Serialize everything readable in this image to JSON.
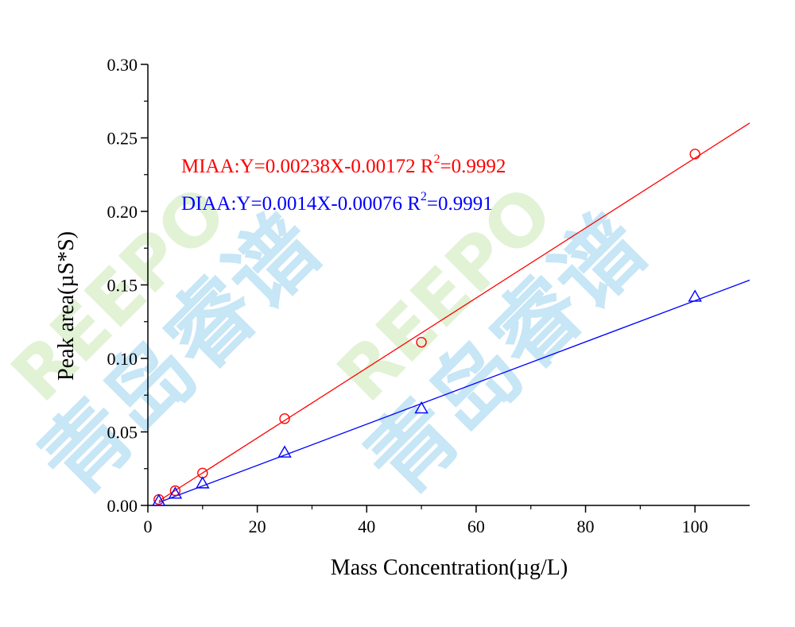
{
  "chart_data": {
    "type": "scatter",
    "xlabel": "Mass Concentration(µg/L)",
    "ylabel": "Peak area(µS*S)",
    "xlim": [
      0,
      110
    ],
    "ylim": [
      0,
      0.3
    ],
    "x_ticks": [
      "0",
      "20",
      "40",
      "60",
      "80",
      "100"
    ],
    "y_ticks": [
      "0.00",
      "0.05",
      "0.10",
      "0.15",
      "0.20",
      "0.25",
      "0.30"
    ],
    "grid": false,
    "series": [
      {
        "name": "MIAA",
        "color": "#ff0000",
        "marker": "circle",
        "x": [
          2,
          5,
          10,
          25,
          50,
          100
        ],
        "y": [
          0.004,
          0.01,
          0.022,
          0.059,
          0.111,
          0.239
        ],
        "fit": {
          "slope": 0.00238,
          "intercept": -0.00172,
          "x_range": [
            2,
            110
          ]
        },
        "annotation": {
          "prefix": "MIAA:Y=0.00238X-0.00172  R",
          "sup": "2",
          "suffix": "=0.9992"
        }
      },
      {
        "name": "DIAA",
        "color": "#0000ff",
        "marker": "triangle",
        "x": [
          2,
          5,
          10,
          25,
          50,
          100
        ],
        "y": [
          0.003,
          0.008,
          0.015,
          0.036,
          0.066,
          0.142
        ],
        "fit": {
          "slope": 0.0014,
          "intercept": -0.00076,
          "x_range": [
            2,
            110
          ]
        },
        "annotation": {
          "prefix": "DIAA:Y=0.0014X-0.00076  R",
          "sup": "2",
          "suffix": "=0.9991"
        }
      }
    ]
  },
  "watermark": {
    "latin": "REEPO",
    "chinese": "青岛睿谱",
    "color": "#3aa7e0"
  }
}
